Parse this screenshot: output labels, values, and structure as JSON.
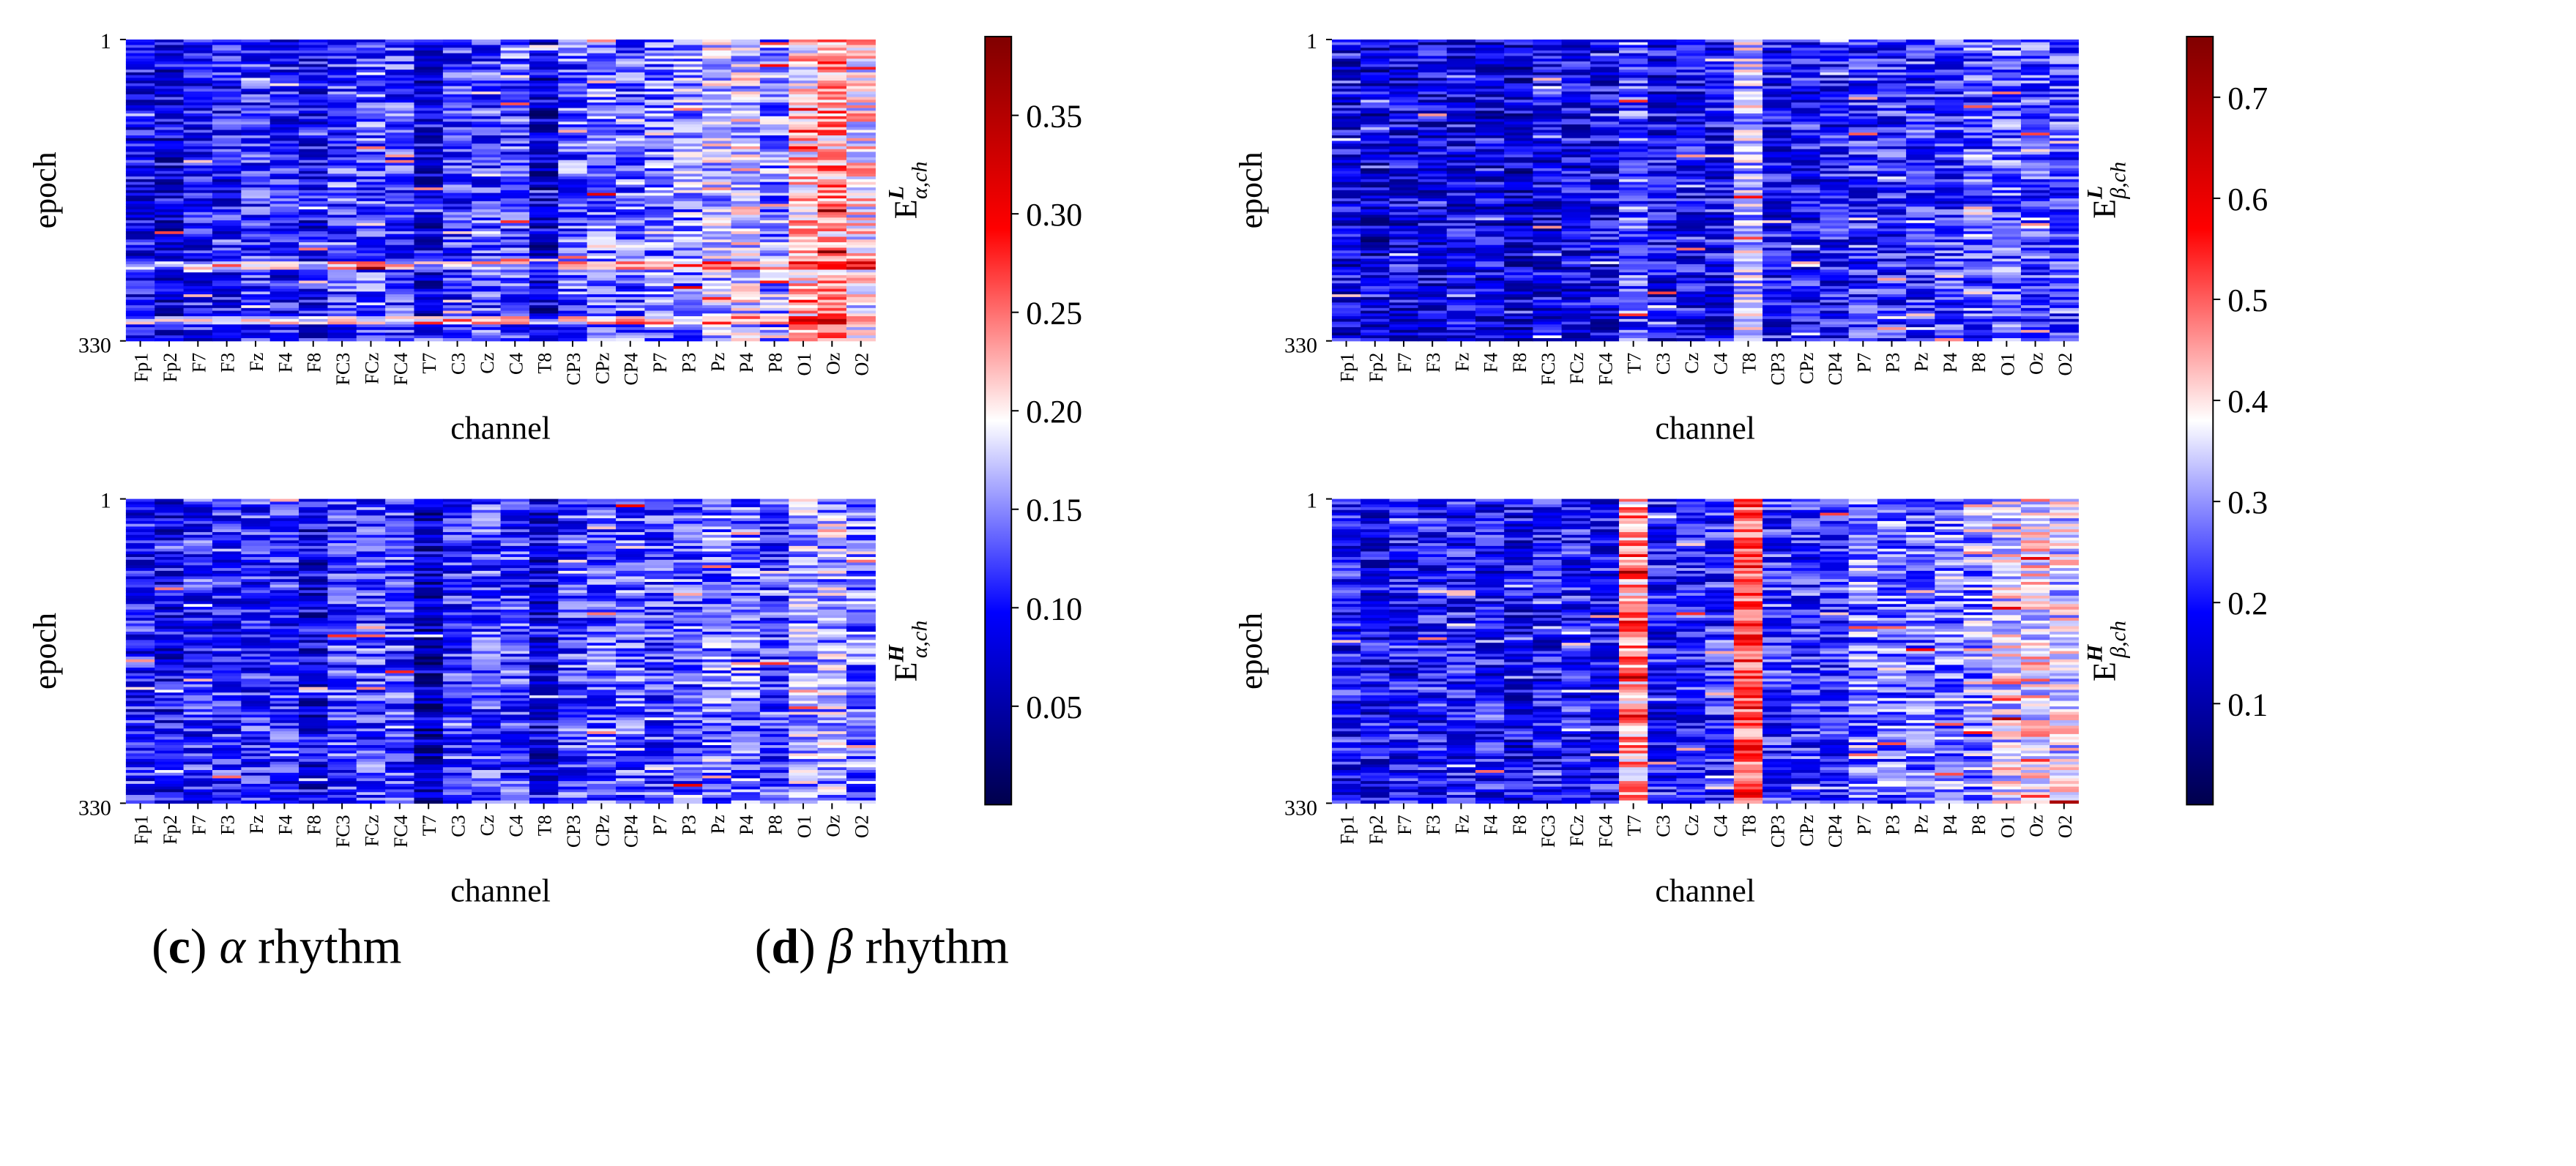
{
  "chart_data": [
    {
      "type": "heatmap",
      "panel_group": "c",
      "caption_letter": "c",
      "caption_symbol": "α",
      "caption_text": "rhythm",
      "colorbar": {
        "ticks": [
          0.05,
          0.1,
          0.15,
          0.2,
          0.25,
          0.3,
          0.35
        ],
        "tick_labels": [
          "0.05",
          "0.10",
          "0.15",
          "0.20",
          "0.25",
          "0.30",
          "0.35"
        ],
        "vmin": 0.0,
        "vmax": 0.39
      },
      "subplots": [
        {
          "id": "alpha-low",
          "ylabel": "epoch",
          "xlabel": "channel",
          "y_ticks": [
            "1",
            "330"
          ],
          "side_label_main": "E",
          "side_label_sup": "L",
          "side_label_sub": "α,ch",
          "channels": [
            "Fp1",
            "Fp2",
            "F7",
            "F3",
            "Fz",
            "F4",
            "F8",
            "FC3",
            "FCz",
            "FC4",
            "T7",
            "C3",
            "Cz",
            "C4",
            "T8",
            "CP3",
            "CPz",
            "CP4",
            "P7",
            "P3",
            "Pz",
            "P4",
            "P8",
            "O1",
            "Oz",
            "O2"
          ],
          "channel_means": [
            0.09,
            0.08,
            0.1,
            0.1,
            0.11,
            0.1,
            0.09,
            0.12,
            0.13,
            0.12,
            0.08,
            0.11,
            0.12,
            0.12,
            0.07,
            0.13,
            0.14,
            0.13,
            0.14,
            0.15,
            0.17,
            0.18,
            0.15,
            0.21,
            0.23,
            0.2
          ],
          "epochs": 330
        },
        {
          "id": "alpha-high",
          "ylabel": "epoch",
          "xlabel": "channel",
          "y_ticks": [
            "1",
            "330"
          ],
          "side_label_main": "E",
          "side_label_sup": "H",
          "side_label_sub": "α,ch",
          "channels": [
            "Fp1",
            "Fp2",
            "F7",
            "F3",
            "Fz",
            "F4",
            "F8",
            "FC3",
            "FCz",
            "FC4",
            "T7",
            "C3",
            "Cz",
            "C4",
            "T8",
            "CP3",
            "CPz",
            "CP4",
            "P7",
            "P3",
            "Pz",
            "P4",
            "P8",
            "O1",
            "Oz",
            "O2"
          ],
          "channel_means": [
            0.1,
            0.09,
            0.11,
            0.11,
            0.11,
            0.11,
            0.08,
            0.12,
            0.12,
            0.12,
            0.06,
            0.11,
            0.12,
            0.12,
            0.08,
            0.12,
            0.13,
            0.13,
            0.12,
            0.13,
            0.14,
            0.14,
            0.12,
            0.16,
            0.16,
            0.14
          ],
          "epochs": 330
        }
      ]
    },
    {
      "type": "heatmap",
      "panel_group": "d",
      "caption_letter": "d",
      "caption_symbol": "β",
      "caption_text": "rhythm",
      "colorbar": {
        "ticks": [
          0.1,
          0.2,
          0.3,
          0.4,
          0.5,
          0.6,
          0.7
        ],
        "tick_labels": [
          "0.1",
          "0.2",
          "0.3",
          "0.4",
          "0.5",
          "0.6",
          "0.7"
        ],
        "vmin": 0.0,
        "vmax": 0.76
      },
      "subplots": [
        {
          "id": "beta-low",
          "ylabel": "epoch",
          "xlabel": "channel",
          "y_ticks": [
            "1",
            "330"
          ],
          "side_label_main": "E",
          "side_label_sup": "L",
          "side_label_sub": "β,ch",
          "channels": [
            "Fp1",
            "Fp2",
            "F7",
            "F3",
            "Fz",
            "F4",
            "F8",
            "FC3",
            "FCz",
            "FC4",
            "T7",
            "C3",
            "Cz",
            "C4",
            "T8",
            "CP3",
            "CPz",
            "CP4",
            "P7",
            "P3",
            "Pz",
            "P4",
            "P8",
            "O1",
            "Oz",
            "O2"
          ],
          "channel_means": [
            0.16,
            0.14,
            0.16,
            0.16,
            0.17,
            0.16,
            0.14,
            0.16,
            0.17,
            0.17,
            0.25,
            0.17,
            0.18,
            0.18,
            0.33,
            0.19,
            0.19,
            0.19,
            0.21,
            0.21,
            0.21,
            0.22,
            0.24,
            0.25,
            0.24,
            0.24
          ],
          "epochs": 330
        },
        {
          "id": "beta-high",
          "ylabel": "epoch",
          "xlabel": "channel",
          "y_ticks": [
            "1",
            "330"
          ],
          "side_label_main": "E",
          "side_label_sup": "H",
          "side_label_sub": "β,ch",
          "channels": [
            "Fp1",
            "Fp2",
            "F7",
            "F3",
            "Fz",
            "F4",
            "F8",
            "FC3",
            "FCz",
            "FC4",
            "T7",
            "C3",
            "Cz",
            "C4",
            "T8",
            "CP3",
            "CPz",
            "CP4",
            "P7",
            "P3",
            "Pz",
            "P4",
            "P8",
            "O1",
            "Oz",
            "O2"
          ],
          "channel_means": [
            0.19,
            0.18,
            0.19,
            0.2,
            0.2,
            0.19,
            0.17,
            0.19,
            0.2,
            0.19,
            0.45,
            0.2,
            0.21,
            0.21,
            0.52,
            0.22,
            0.22,
            0.22,
            0.28,
            0.27,
            0.27,
            0.28,
            0.29,
            0.36,
            0.38,
            0.36
          ],
          "epochs": 330
        }
      ]
    }
  ]
}
